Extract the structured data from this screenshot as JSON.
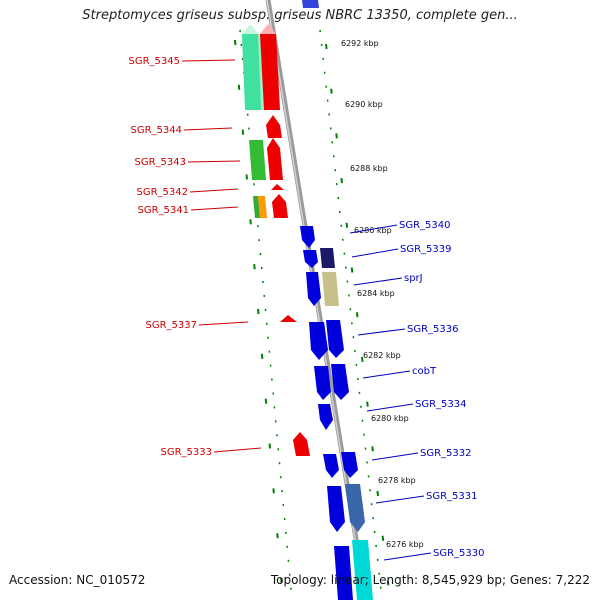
{
  "title": "Streptomyces griseus subsp. griseus NBRC 13350, complete gen...",
  "footer": {
    "accession": "Accession: NC_010572",
    "topology": "Topology: linear;",
    "length": "Length: 8,545,929 bp;",
    "genes": "Genes: 7,222"
  },
  "colors": {
    "strand_minus_gene": "#ee0000",
    "strand_plus_gene": "#0000dd",
    "backbone": "#888888",
    "tick_green": "#008000",
    "label_left": "#d00000",
    "label_right": "#0000c0"
  },
  "scale_labels": [
    "6292 kbp",
    "6290 kbp",
    "6288 kbp",
    "6286 kbp",
    "6284 kbp",
    "6282 kbp",
    "6280 kbp",
    "6278 kbp",
    "6276 kbp"
  ],
  "left_genes": [
    "SGR_5345",
    "SGR_5344",
    "SGR_5343",
    "SGR_5342",
    "SGR_5341",
    "SGR_5337",
    "SGR_5333"
  ],
  "right_genes": [
    "SGR_5340",
    "SGR_5339",
    "sprJ",
    "SGR_5336",
    "cobT",
    "SGR_5334",
    "SGR_5332",
    "SGR_5331",
    "SGR_5330"
  ]
}
